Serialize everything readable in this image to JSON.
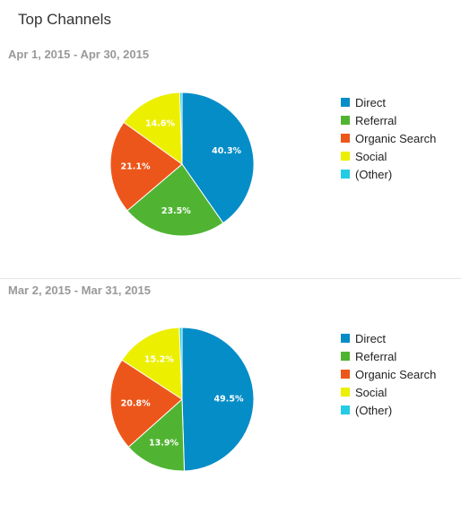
{
  "title": "Top Channels",
  "colors": {
    "Direct": "#058dc7",
    "Referral": "#50b432",
    "Organic Search": "#ed561b",
    "Social": "#edef00",
    "(Other)": "#24cbe5"
  },
  "chart_data": [
    {
      "type": "pie",
      "title": "Apr 1, 2015 - Apr 30, 2015",
      "categories": [
        "Direct",
        "Referral",
        "Organic Search",
        "Social",
        "(Other)"
      ],
      "values": [
        40.3,
        23.5,
        21.1,
        14.6,
        0.5
      ],
      "labels": [
        "40.3%",
        "23.5%",
        "21.1%",
        "14.6%",
        ""
      ],
      "legend_position": "right"
    },
    {
      "type": "pie",
      "title": "Mar 2, 2015 - Mar 31, 2015",
      "categories": [
        "Direct",
        "Referral",
        "Organic Search",
        "Social",
        "(Other)"
      ],
      "values": [
        49.5,
        13.9,
        20.8,
        15.2,
        0.6
      ],
      "labels": [
        "49.5%",
        "13.9%",
        "20.8%",
        "15.2%",
        ""
      ],
      "legend_position": "right"
    }
  ]
}
